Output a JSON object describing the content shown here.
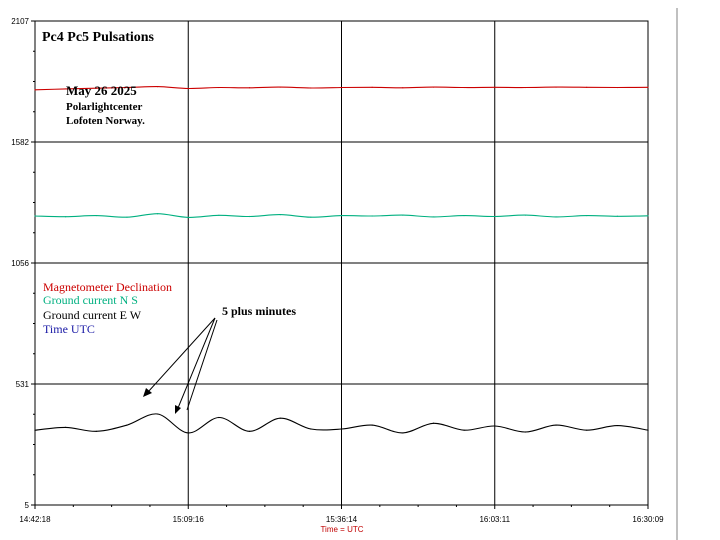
{
  "chart_data": {
    "type": "line",
    "title": "Pc4  Pc5 Pulsations",
    "date_line": "May 26 2025",
    "org_line_1": "Polarlightcenter",
    "org_line_2": "Lofoten Norway.",
    "xlabel": "Time = UTC",
    "x_tick_labels": [
      "14:42:18",
      "15:09:16",
      "15:36:14",
      "16:03:11",
      "16:30:09"
    ],
    "y_tick_labels": [
      "2107",
      "1582",
      "1056",
      "531",
      "5"
    ],
    "ylim": [
      5,
      2107
    ],
    "grid": true,
    "legend_position": "middle-left",
    "legend": [
      {
        "name": "Magnetometer Declination",
        "color": "#cc0000"
      },
      {
        "name": "Ground current N S",
        "color": "#00b080"
      },
      {
        "name": "Ground current E W",
        "color": "#000000"
      },
      {
        "name": "Time UTC",
        "color": "#1a1aa6"
      }
    ],
    "annotation": {
      "text": "5 plus minutes"
    },
    "x": [
      "14:42:18",
      "14:47:42",
      "14:53:05",
      "14:58:29",
      "15:03:52",
      "15:09:16",
      "15:14:40",
      "15:20:03",
      "15:25:27",
      "15:30:50",
      "15:36:14",
      "15:41:37",
      "15:47:01",
      "15:52:24",
      "15:57:48",
      "16:03:11",
      "16:08:35",
      "16:13:58",
      "16:19:22",
      "16:24:45",
      "16:30:09"
    ],
    "series": [
      {
        "name": "Magnetometer Declination",
        "color": "#cc0000",
        "values": [
          1808,
          1812,
          1815,
          1818,
          1822,
          1814,
          1818,
          1817,
          1820,
          1816,
          1818,
          1819,
          1817,
          1820,
          1818,
          1819,
          1818,
          1820,
          1819,
          1818,
          1819
        ]
      },
      {
        "name": "Ground current N S",
        "color": "#00b080",
        "values": [
          1260,
          1257,
          1262,
          1255,
          1270,
          1254,
          1263,
          1258,
          1266,
          1255,
          1262,
          1260,
          1264,
          1256,
          1262,
          1258,
          1264,
          1256,
          1262,
          1259,
          1261
        ]
      },
      {
        "name": "Ground current E W",
        "color": "#000000",
        "values": [
          330,
          342,
          325,
          352,
          400,
          318,
          385,
          325,
          382,
          335,
          335,
          352,
          318,
          360,
          330,
          348,
          322,
          352,
          330,
          350,
          330
        ]
      }
    ]
  }
}
